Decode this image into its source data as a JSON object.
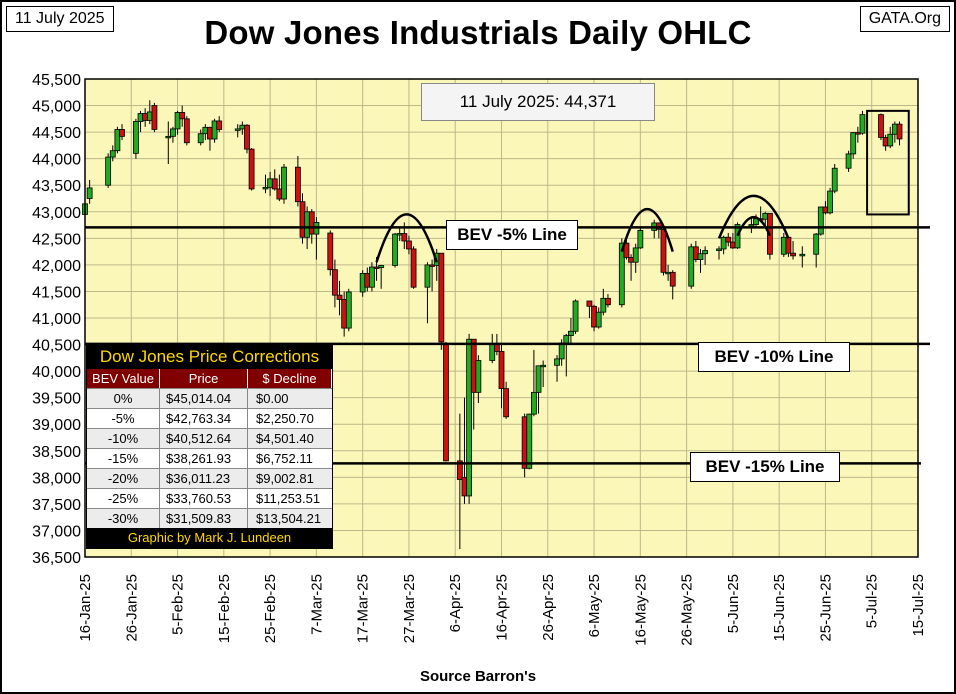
{
  "header": {
    "date": "11 July 2025",
    "source_tag": "GATA.Org"
  },
  "chart_data": {
    "type": "ohlc",
    "title": "Dow Jones Industrials Daily OHLC",
    "xlabel": "Source Barron's",
    "ylabel": "",
    "ylim": [
      36500,
      45500
    ],
    "y_ticks": [
      "36,500",
      "37,000",
      "37,500",
      "38,000",
      "38,500",
      "39,000",
      "39,500",
      "40,000",
      "40,500",
      "41,000",
      "41,500",
      "42,000",
      "42,500",
      "43,000",
      "43,500",
      "44,000",
      "44,500",
      "45,000",
      "45,500"
    ],
    "x_ticks": [
      "16-Jan-25",
      "26-Jan-25",
      "5-Feb-25",
      "15-Feb-25",
      "25-Feb-25",
      "7-Mar-25",
      "17-Mar-25",
      "27-Mar-25",
      "6-Apr-25",
      "16-Apr-25",
      "26-Apr-25",
      "6-May-25",
      "16-May-25",
      "26-May-25",
      "5-Jun-25",
      "15-Jun-25",
      "25-Jun-25",
      "5-Jul-25",
      "15-Jul-25"
    ],
    "x_start": "2025-01-16",
    "x_end": "2025-07-15",
    "up_color": "#22aa22",
    "down_color": "#cc1111",
    "plot_bg": "#fbf7b9",
    "candles": [
      [
        "2025-01-16",
        42950,
        43200,
        42850,
        43150
      ],
      [
        "2025-01-17",
        43250,
        43600,
        43150,
        43450
      ],
      [
        "2025-01-21",
        43500,
        44100,
        43450,
        44030
      ],
      [
        "2025-01-22",
        44030,
        44250,
        43950,
        44150
      ],
      [
        "2025-01-23",
        44150,
        44600,
        44100,
        44550
      ],
      [
        "2025-01-24",
        44550,
        44650,
        44350,
        44420
      ],
      [
        "2025-01-27",
        44100,
        44750,
        44000,
        44700
      ],
      [
        "2025-01-28",
        44700,
        44900,
        44500,
        44850
      ],
      [
        "2025-01-29",
        44850,
        44950,
        44600,
        44720
      ],
      [
        "2025-01-30",
        44720,
        45100,
        44650,
        44880
      ],
      [
        "2025-01-31",
        45000,
        45050,
        44500,
        44550
      ],
      [
        "2025-02-03",
        44400,
        44700,
        43900,
        44420
      ],
      [
        "2025-02-04",
        44420,
        44600,
        44300,
        44560
      ],
      [
        "2025-02-05",
        44560,
        44900,
        44450,
        44870
      ],
      [
        "2025-02-06",
        44870,
        45000,
        44600,
        44750
      ],
      [
        "2025-02-07",
        44750,
        44800,
        44250,
        44300
      ],
      [
        "2025-02-10",
        44300,
        44550,
        44250,
        44470
      ],
      [
        "2025-02-11",
        44470,
        44650,
        44350,
        44590
      ],
      [
        "2025-02-12",
        44590,
        44600,
        44150,
        44370
      ],
      [
        "2025-02-13",
        44370,
        44750,
        44300,
        44710
      ],
      [
        "2025-02-14",
        44710,
        44800,
        44500,
        44550
      ],
      [
        "2025-02-18",
        44550,
        44650,
        44400,
        44560
      ],
      [
        "2025-02-19",
        44560,
        44700,
        44450,
        44630
      ],
      [
        "2025-02-20",
        44630,
        44650,
        44100,
        44180
      ],
      [
        "2025-02-21",
        44180,
        44200,
        43400,
        43430
      ],
      [
        "2025-02-24",
        43430,
        43700,
        43350,
        43460
      ],
      [
        "2025-02-25",
        43460,
        43750,
        43300,
        43620
      ],
      [
        "2025-02-26",
        43620,
        43800,
        43400,
        43430
      ],
      [
        "2025-02-27",
        43430,
        43700,
        43200,
        43240
      ],
      [
        "2025-02-28",
        43240,
        43900,
        43150,
        43840
      ],
      [
        "2025-03-03",
        43840,
        44050,
        43100,
        43190
      ],
      [
        "2025-03-04",
        43190,
        43350,
        42400,
        42520
      ],
      [
        "2025-03-05",
        42520,
        43100,
        42300,
        43000
      ],
      [
        "2025-03-06",
        43000,
        43050,
        42400,
        42580
      ],
      [
        "2025-03-07",
        42580,
        42900,
        42100,
        42800
      ],
      [
        "2025-03-10",
        42600,
        42650,
        41800,
        41910
      ],
      [
        "2025-03-11",
        41910,
        42100,
        41200,
        41430
      ],
      [
        "2025-03-12",
        41430,
        41700,
        41050,
        41350
      ],
      [
        "2025-03-13",
        41350,
        41500,
        40650,
        40810
      ],
      [
        "2025-03-14",
        40810,
        41550,
        40750,
        41490
      ],
      [
        "2025-03-17",
        41490,
        41900,
        41400,
        41840
      ],
      [
        "2025-03-18",
        41840,
        41950,
        41500,
        41580
      ],
      [
        "2025-03-19",
        41580,
        42050,
        41500,
        41960
      ],
      [
        "2025-03-20",
        41960,
        42150,
        41700,
        41950
      ],
      [
        "2025-03-21",
        41950,
        42000,
        41550,
        41990
      ],
      [
        "2025-03-24",
        41990,
        42600,
        41950,
        42580
      ],
      [
        "2025-03-25",
        42580,
        42700,
        42450,
        42590
      ],
      [
        "2025-03-26",
        42590,
        42800,
        42300,
        42450
      ],
      [
        "2025-03-27",
        42450,
        42550,
        42200,
        42300
      ],
      [
        "2025-03-28",
        42300,
        42350,
        41550,
        41580
      ],
      [
        "2025-03-31",
        41580,
        42050,
        40900,
        42000
      ],
      [
        "2025-04-01",
        42000,
        42100,
        41500,
        41990
      ],
      [
        "2025-04-02",
        41990,
        42300,
        41700,
        42220
      ],
      [
        "2025-04-03",
        42220,
        42200,
        40400,
        40550
      ],
      [
        "2025-04-04",
        40500,
        40550,
        38300,
        38310
      ],
      [
        "2025-04-07",
        38310,
        39200,
        36650,
        37960
      ],
      [
        "2025-04-08",
        38000,
        39500,
        37500,
        37650
      ],
      [
        "2025-04-09",
        37650,
        40700,
        37500,
        40600
      ],
      [
        "2025-04-10",
        40600,
        40600,
        38900,
        39600
      ],
      [
        "2025-04-11",
        39600,
        40300,
        39400,
        40200
      ],
      [
        "2025-04-14",
        40200,
        40700,
        40150,
        40520
      ],
      [
        "2025-04-15",
        40520,
        40700,
        40300,
        40370
      ],
      [
        "2025-04-16",
        40370,
        40500,
        39300,
        39670
      ],
      [
        "2025-04-17",
        39670,
        39800,
        39100,
        39140
      ],
      [
        "2025-04-21",
        39140,
        39200,
        38000,
        38170
      ],
      [
        "2025-04-22",
        38170,
        39200,
        38150,
        39190
      ],
      [
        "2025-04-23",
        39190,
        40400,
        39150,
        39600
      ],
      [
        "2025-04-24",
        39600,
        40100,
        39200,
        40100
      ],
      [
        "2025-04-25",
        40100,
        40200,
        39700,
        40110
      ],
      [
        "2025-04-28",
        40110,
        40300,
        39800,
        40230
      ],
      [
        "2025-04-29",
        40230,
        40600,
        40100,
        40530
      ],
      [
        "2025-04-30",
        40530,
        40700,
        39900,
        40670
      ],
      [
        "2025-05-01",
        40670,
        41000,
        40500,
        40750
      ],
      [
        "2025-05-02",
        40750,
        41350,
        40700,
        41320
      ],
      [
        "2025-05-05",
        41320,
        41300,
        41000,
        41220
      ],
      [
        "2025-05-06",
        41220,
        41250,
        40750,
        40830
      ],
      [
        "2025-05-07",
        40830,
        41200,
        40800,
        41110
      ],
      [
        "2025-05-08",
        41110,
        41550,
        41050,
        41370
      ],
      [
        "2025-05-09",
        41370,
        41450,
        41200,
        41250
      ],
      [
        "2025-05-12",
        41250,
        42500,
        41200,
        42410
      ],
      [
        "2025-05-13",
        42410,
        42500,
        42100,
        42140
      ],
      [
        "2025-05-14",
        42140,
        42200,
        41700,
        42050
      ],
      [
        "2025-05-15",
        42050,
        42400,
        41850,
        42320
      ],
      [
        "2025-05-16",
        42320,
        42700,
        42300,
        42650
      ],
      [
        "2025-05-19",
        42650,
        42850,
        42500,
        42790
      ],
      [
        "2025-05-20",
        42790,
        42800,
        42500,
        42670
      ],
      [
        "2025-05-21",
        42670,
        42700,
        41800,
        41860
      ],
      [
        "2025-05-22",
        41860,
        42000,
        41700,
        41860
      ],
      [
        "2025-05-23",
        41860,
        41900,
        41350,
        41600
      ],
      [
        "2025-05-27",
        41600,
        42400,
        41550,
        42340
      ],
      [
        "2025-05-28",
        42340,
        42450,
        42050,
        42100
      ],
      [
        "2025-05-29",
        42100,
        42300,
        41850,
        42210
      ],
      [
        "2025-05-30",
        42210,
        42350,
        42000,
        42270
      ],
      [
        "2025-06-02",
        42270,
        42350,
        42100,
        42300
      ],
      [
        "2025-06-03",
        42300,
        42550,
        42200,
        42520
      ],
      [
        "2025-06-04",
        42520,
        42600,
        42350,
        42430
      ],
      [
        "2025-06-05",
        42430,
        42600,
        42300,
        42320
      ],
      [
        "2025-06-06",
        42320,
        42800,
        42300,
        42760
      ],
      [
        "2025-06-09",
        42760,
        42900,
        42600,
        42760
      ],
      [
        "2025-06-10",
        42760,
        42950,
        42700,
        42870
      ],
      [
        "2025-06-11",
        42870,
        43100,
        42800,
        42860
      ],
      [
        "2025-06-12",
        42860,
        43000,
        42700,
        42970
      ],
      [
        "2025-06-13",
        42970,
        42900,
        42100,
        42200
      ],
      [
        "2025-06-16",
        42200,
        42600,
        42150,
        42520
      ],
      [
        "2025-06-17",
        42520,
        42500,
        42150,
        42220
      ],
      [
        "2025-06-18",
        42220,
        42450,
        42100,
        42170
      ],
      [
        "2025-06-20",
        42170,
        42350,
        41950,
        42200
      ],
      [
        "2025-06-23",
        42200,
        42600,
        41950,
        42580
      ],
      [
        "2025-06-24",
        42580,
        43100,
        42550,
        43090
      ],
      [
        "2025-06-25",
        43090,
        43200,
        42950,
        42980
      ],
      [
        "2025-06-26",
        42980,
        43450,
        42950,
        43390
      ],
      [
        "2025-06-27",
        43390,
        43900,
        43350,
        43820
      ],
      [
        "2025-06-30",
        43820,
        44150,
        43750,
        44090
      ],
      [
        "2025-07-01",
        44090,
        44500,
        44000,
        44490
      ],
      [
        "2025-07-02",
        44490,
        44600,
        44300,
        44480
      ],
      [
        "2025-07-03",
        44480,
        44900,
        44450,
        44830
      ],
      [
        "2025-07-07",
        44830,
        44850,
        44350,
        44400
      ],
      [
        "2025-07-08",
        44400,
        44450,
        44150,
        44240
      ],
      [
        "2025-07-09",
        44240,
        44600,
        44200,
        44460
      ],
      [
        "2025-07-10",
        44460,
        44700,
        44300,
        44650
      ],
      [
        "2025-07-11",
        44650,
        44700,
        44250,
        44371
      ]
    ],
    "annotations": {
      "current": "11 July 2025:  44,371",
      "bev5": "BEV -5% Line",
      "bev10": "BEV -10% Line",
      "bev15": "BEV -15% Line"
    },
    "bev_levels": [
      42763.34,
      40512.64,
      38261.93
    ],
    "arcs": [
      [
        "2025-03-20",
        "2025-04-02",
        42050,
        42950
      ],
      [
        "2025-05-12",
        "2025-05-23",
        42250,
        43050
      ],
      [
        "2025-06-02",
        "2025-06-17",
        42500,
        43300
      ],
      [
        "2025-06-06",
        "2025-06-13",
        42550,
        42900
      ]
    ],
    "highlight_box": [
      "2025-07-04",
      "2025-07-13",
      42950,
      44900
    ]
  },
  "corrections": {
    "title": "Dow Jones Price Corrections",
    "headers": [
      "BEV Value",
      "Price",
      "$ Decline"
    ],
    "rows": [
      [
        "0%",
        "$45,014.04",
        "$0.00"
      ],
      [
        "-5%",
        "$42,763.34",
        "$2,250.70"
      ],
      [
        "-10%",
        "$40,512.64",
        "$4,501.40"
      ],
      [
        "-15%",
        "$38,261.93",
        "$6,752.11"
      ],
      [
        "-20%",
        "$36,011.23",
        "$9,002.81"
      ],
      [
        "-25%",
        "$33,760.53",
        "$11,253.51"
      ],
      [
        "-30%",
        "$31,509.83",
        "$13,504.21"
      ]
    ],
    "footer": "Graphic by Mark J. Lundeen"
  }
}
